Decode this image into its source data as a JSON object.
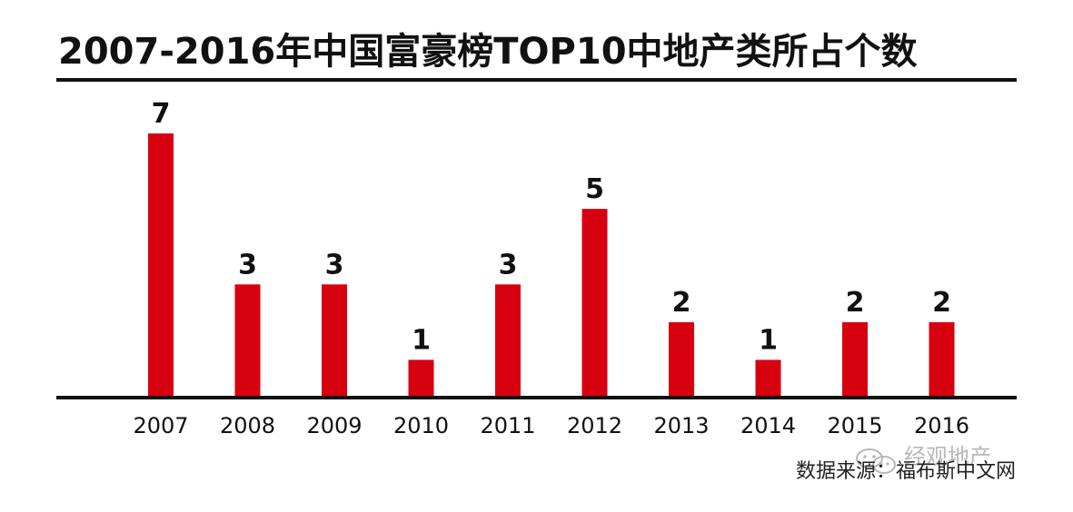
{
  "page": {
    "title": "2007-2016年中国富豪榜TOP10中地产类所占个数",
    "source_text": "数据来源：福布斯中文网",
    "watermark_text": "经观地产"
  },
  "colors": {
    "bar": "#d7000f",
    "text": "#111111",
    "axis": "#111111",
    "title_rule": "#111111",
    "watermark": "#b8b8b8"
  },
  "chart_data": {
    "type": "bar",
    "title": "2007-2016年中国富豪榜TOP10中地产类所占个数",
    "xlabel": "",
    "ylabel": "",
    "categories": [
      "2007",
      "2008",
      "2009",
      "2010",
      "2011",
      "2012",
      "2013",
      "2014",
      "2015",
      "2016"
    ],
    "values": [
      7,
      3,
      3,
      1,
      3,
      5,
      2,
      1,
      2,
      2
    ],
    "data_labels": [
      "7",
      "3",
      "3",
      "1",
      "3",
      "5",
      "2",
      "1",
      "2",
      "2"
    ],
    "ylim": [
      0,
      7
    ],
    "grid": false,
    "legend": "none"
  }
}
